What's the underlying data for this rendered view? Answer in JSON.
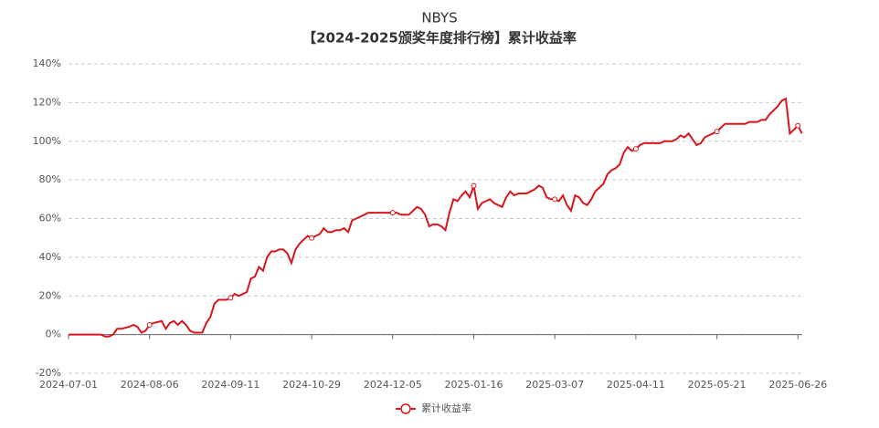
{
  "chart_data": {
    "type": "line",
    "title": "NBYS",
    "subtitle": "【2024-2025颁奖年度排行榜】累计收益率",
    "categories": [
      "2024-07-01",
      null,
      null,
      null,
      null,
      null,
      null,
      null,
      null,
      null,
      null,
      null,
      null,
      null,
      null,
      null,
      null,
      null,
      null,
      null,
      "2024-08-06",
      null,
      null,
      null,
      null,
      null,
      null,
      null,
      null,
      null,
      null,
      null,
      null,
      null,
      null,
      null,
      null,
      null,
      null,
      null,
      "2024-09-11",
      null,
      null,
      null,
      null,
      null,
      null,
      null,
      null,
      null,
      null,
      null,
      null,
      null,
      null,
      null,
      null,
      null,
      null,
      null,
      "2024-10-29",
      null,
      null,
      null,
      null,
      null,
      null,
      null,
      null,
      null,
      null,
      null,
      null,
      null,
      null,
      null,
      null,
      null,
      null,
      null,
      "2024-12-05",
      null,
      null,
      null,
      null,
      null,
      null,
      null,
      null,
      null,
      null,
      null,
      null,
      null,
      null,
      null,
      null,
      null,
      null,
      null,
      "2025-01-16",
      null,
      null,
      null,
      null,
      null,
      null,
      null,
      null,
      null,
      null,
      null,
      null,
      null,
      null,
      null,
      null,
      null,
      null,
      null,
      "2025-03-07",
      null,
      null,
      null,
      null,
      null,
      null,
      null,
      null,
      null,
      null,
      null,
      null,
      null,
      null,
      null,
      null,
      null,
      null,
      null,
      "2025-04-11",
      null,
      null,
      null,
      null,
      null,
      null,
      null,
      null,
      null,
      null,
      null,
      null,
      null,
      null,
      null,
      null,
      null,
      null,
      null,
      "2025-05-21",
      null,
      null,
      null,
      null,
      null,
      null,
      null,
      null,
      null,
      null,
      null,
      null,
      null,
      null,
      null,
      null,
      null,
      null,
      null,
      "2025-06-26",
      null
    ],
    "series": [
      {
        "name": "累计收益率",
        "color": "#d9161c",
        "values": [
          0,
          0,
          0,
          0,
          0,
          0,
          0,
          0,
          0,
          -1,
          -1,
          0,
          3,
          3,
          3.5,
          4,
          5,
          4,
          1,
          2,
          5,
          6,
          6.5,
          7,
          3,
          6,
          7,
          5,
          7,
          5,
          2,
          1,
          1,
          1,
          6,
          9,
          16,
          18,
          18,
          18,
          19,
          21,
          20,
          21,
          22,
          29,
          30,
          35,
          33,
          40,
          43,
          43,
          44,
          44,
          42,
          37,
          44,
          47,
          49,
          51,
          50,
          51,
          52,
          55,
          53,
          53,
          54,
          54,
          55,
          53,
          59,
          60,
          61,
          62,
          63,
          63,
          63,
          63,
          63,
          63,
          63,
          63,
          62,
          62,
          62,
          64,
          66,
          65,
          62,
          56,
          57,
          57,
          56,
          54,
          63,
          70,
          69,
          72,
          74,
          71,
          77,
          65,
          68,
          69,
          70,
          68,
          67,
          66,
          71,
          74,
          72,
          73,
          73,
          73,
          74,
          75,
          77,
          76,
          71,
          70,
          70,
          69,
          72,
          67,
          64,
          72,
          71,
          68,
          67,
          70,
          74,
          76,
          78,
          83,
          85,
          86,
          88,
          94,
          97,
          95,
          96,
          98,
          99,
          99,
          99,
          99,
          99,
          100,
          100,
          100,
          101,
          103,
          102,
          104,
          101,
          98,
          99,
          102,
          103,
          104,
          105,
          107,
          109,
          109,
          109,
          109,
          109,
          109,
          110,
          110,
          110,
          111,
          111,
          114,
          116,
          118,
          121,
          122,
          104,
          106,
          108,
          104
        ]
      }
    ],
    "ylim": [
      -20,
      140
    ],
    "yticks": [
      {
        "value": -20,
        "label": "-20%"
      },
      {
        "value": 0,
        "label": "0%"
      },
      {
        "value": 20,
        "label": "20%"
      },
      {
        "value": 40,
        "label": "40%"
      },
      {
        "value": 60,
        "label": "60%"
      },
      {
        "value": 80,
        "label": "80%"
      },
      {
        "value": 100,
        "label": "100%"
      },
      {
        "value": 120,
        "label": "120%"
      },
      {
        "value": 140,
        "label": "140%"
      }
    ],
    "grid": true,
    "legend": "bottom"
  }
}
